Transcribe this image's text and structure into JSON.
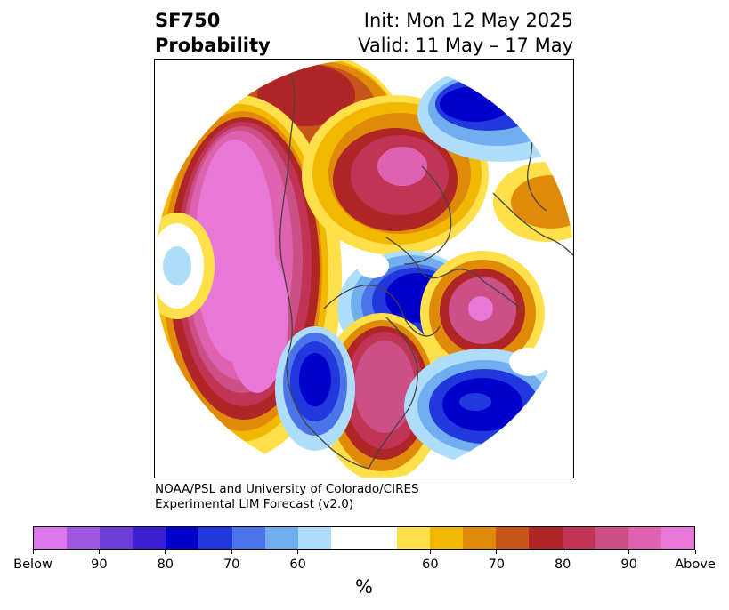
{
  "title": {
    "left_line1": "SF750",
    "left_line2": "Probability",
    "right_line1": "Init: Mon 12 May 2025",
    "right_line2": "Valid: 11 May – 17 May"
  },
  "credit": {
    "line1": "NOAA/PSL and University of Colorado/CIRES",
    "line2": "Experimental LIM Forecast (v2.0)"
  },
  "colorbar": {
    "units": "%",
    "colors": [
      "#dd77ee",
      "#a058e0",
      "#6e3fd8",
      "#3b1fd0",
      "#0000cc",
      "#2038dd",
      "#4a74e8",
      "#70aef0",
      "#aeddfa",
      "#ffffff",
      "#ffffff",
      "#ffe04a",
      "#f2b800",
      "#e08a0a",
      "#c8561a",
      "#b02525",
      "#c03555",
      "#cc4f85",
      "#de62b0",
      "#e878d8"
    ],
    "ticks": [
      {
        "label": "Below",
        "index": 0
      },
      {
        "label": "90",
        "index": 2
      },
      {
        "label": "80",
        "index": 4
      },
      {
        "label": "70",
        "index": 6
      },
      {
        "label": "60",
        "index": 8
      },
      {
        "label": "60",
        "index": 12
      },
      {
        "label": "70",
        "index": 14
      },
      {
        "label": "80",
        "index": 16
      },
      {
        "label": "90",
        "index": 18
      },
      {
        "label": "Above",
        "index": 20
      }
    ]
  },
  "map": {
    "projection": "north-polar-stereographic",
    "anomalies": [
      {
        "region": "North Pacific",
        "sign": "above",
        "peak": "Above"
      },
      {
        "region": "Greenland / Baffin",
        "sign": "above",
        "peak": "90"
      },
      {
        "region": "Western Europe",
        "sign": "above",
        "peak": "90"
      },
      {
        "region": "Southern United States",
        "sign": "above",
        "peak": "90"
      },
      {
        "region": "East Siberia / Alaska",
        "sign": "above",
        "peak": "80"
      },
      {
        "region": "Hudson Bay / Canada",
        "sign": "below",
        "peak": "80"
      },
      {
        "region": "Northern Europe / Scandinavia",
        "sign": "below",
        "peak": "80"
      },
      {
        "region": "Western United States",
        "sign": "below",
        "peak": "80"
      },
      {
        "region": "Southern Europe / North Africa",
        "sign": "below",
        "peak": "90"
      }
    ]
  }
}
